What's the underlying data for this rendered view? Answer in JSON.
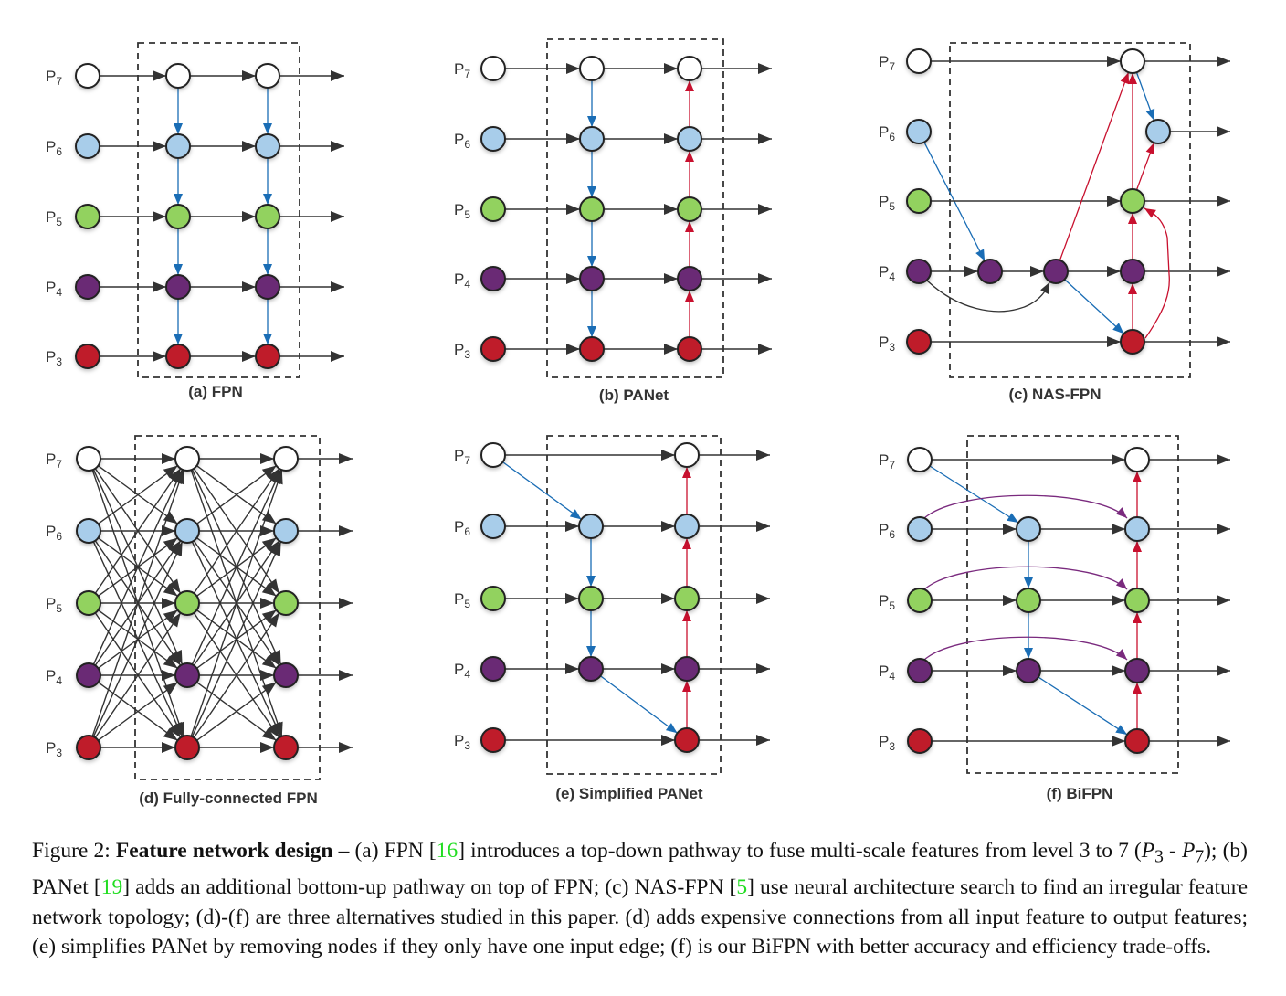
{
  "figure": {
    "level_prefix": "P",
    "levels": [
      "7",
      "6",
      "5",
      "4",
      "3"
    ],
    "panels": [
      {
        "id": "a",
        "caption": "(a) FPN"
      },
      {
        "id": "b",
        "caption": "(b) PANet"
      },
      {
        "id": "c",
        "caption": "(c) NAS-FPN"
      },
      {
        "id": "d",
        "caption": "(d) Fully-connected FPN"
      },
      {
        "id": "e",
        "caption": "(e) Simplified PANet"
      },
      {
        "id": "f",
        "caption": "(f) BiFPN"
      }
    ],
    "colors": {
      "level_7": "#ffffff",
      "level_6": "#a8cdea",
      "level_5": "#92d25e",
      "level_4": "#6b2a74",
      "level_3": "#bf1a2c",
      "top_down": "#1a6db5",
      "bottom_up": "#c8102e",
      "cross_scale": "#7a2a7e",
      "same_level": "#333333"
    }
  },
  "caption": {
    "prefix": "Figure 2: ",
    "title": "Feature network design –",
    "t1": " (a) FPN [",
    "ref1": "16",
    "t2": "] introduces a top-down pathway to fuse multi-scale features from level 3 to 7 (",
    "p3": "P",
    "p3sub": "3",
    "t3": " - ",
    "p7": "P",
    "p7sub": "7",
    "t4": "); (b) PANet [",
    "ref2": "19",
    "t5": "] adds an additional bottom-up pathway on top of FPN; (c) NAS-FPN [",
    "ref3": "5",
    "t6": "] use neural architecture search to find an irregular feature network topology; (d)-(f) are three alternatives studied in this paper. (d) adds expensive connections from all input feature to output features; (e) simplifies PANet by removing nodes if they only have one input edge; (f) is our BiFPN with better accuracy and efficiency trade-offs."
  }
}
